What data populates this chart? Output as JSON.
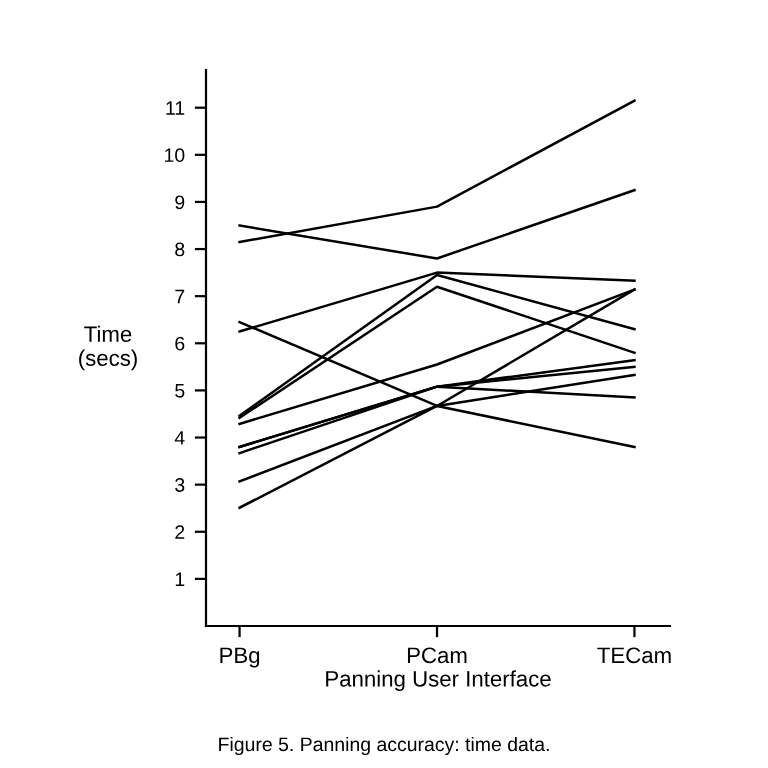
{
  "chart_data": {
    "type": "line",
    "xlabel": "Panning User Interface",
    "ylabel": "Time\n(secs)",
    "categories": [
      "PBg",
      "PCam",
      "TECam"
    ],
    "series": [
      {
        "color": "#000000",
        "values": [
          8.15,
          8.9,
          11.15
        ]
      },
      {
        "color": "#000000",
        "values": [
          8.5,
          7.8,
          9.25
        ]
      },
      {
        "color": "#000000",
        "values": [
          6.25,
          7.5,
          7.33
        ]
      },
      {
        "color": "#000000",
        "values": [
          6.45,
          4.67,
          3.8
        ]
      },
      {
        "color": "#000000",
        "values": [
          4.46,
          7.45,
          6.3
        ]
      },
      {
        "color": "#000000",
        "values": [
          4.42,
          7.2,
          5.8
        ]
      },
      {
        "color": "#000000",
        "values": [
          4.29,
          5.55,
          7.14
        ]
      },
      {
        "color": "#000000",
        "values": [
          3.8,
          5.08,
          5.64
        ]
      },
      {
        "color": "#000000",
        "values": [
          3.67,
          5.08,
          5.5
        ]
      },
      {
        "color": "#000000",
        "values": [
          3.07,
          4.67,
          7.14
        ]
      },
      {
        "color": "#000000",
        "values": [
          2.51,
          4.67,
          5.33
        ]
      },
      {
        "color": "#000000",
        "values": [
          3.8,
          5.08,
          4.85
        ]
      }
    ],
    "ylim": [
      0,
      11.8
    ],
    "yticks": [
      1,
      2,
      3,
      4,
      5,
      6,
      7,
      8,
      9,
      10,
      11
    ],
    "grid": false,
    "marker": "none",
    "line_style": "solid",
    "annotations": [
      "Figure 5. Panning accuracy: time data."
    ]
  }
}
